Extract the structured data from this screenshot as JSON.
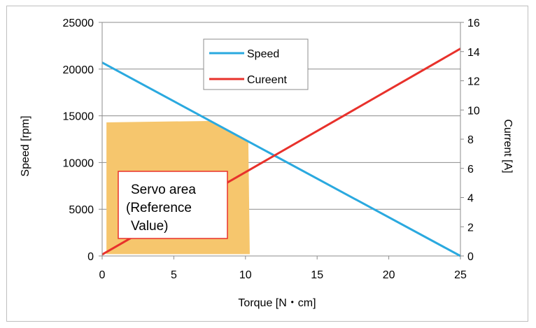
{
  "chart_data": {
    "type": "line",
    "xlabel": "Torque [N・cm]",
    "ylabel": "Speed [rpm]",
    "y2label": "Current [A]",
    "xlim": [
      0,
      25
    ],
    "ylim": [
      0,
      25000
    ],
    "y2lim": [
      0,
      16
    ],
    "x_ticks": [
      "0",
      "5",
      "10",
      "15",
      "20",
      "25"
    ],
    "y_ticks": [
      "0",
      "5000",
      "10000",
      "15000",
      "20000",
      "25000"
    ],
    "y2_ticks": [
      "0",
      "2",
      "4",
      "6",
      "8",
      "10",
      "12",
      "14",
      "16"
    ],
    "grid": true,
    "legend_position": "top-center",
    "series": [
      {
        "name": "Speed",
        "axis": "left",
        "color": "#2aa9df",
        "x": [
          0,
          25
        ],
        "y": [
          20700,
          0
        ]
      },
      {
        "name": "Cureent",
        "axis": "right",
        "color": "#e8312b",
        "x": [
          0,
          25
        ],
        "y": [
          0.1,
          14.2
        ]
      }
    ],
    "servo_area": {
      "color": "#f6c66d",
      "x": [
        0.3,
        7.5,
        10.2,
        10.3,
        0.3
      ],
      "y": [
        14300,
        14450,
        12200,
        200,
        200
      ]
    },
    "annotation": {
      "lines": [
        "Servo area",
        "(Reference",
        "Value)"
      ],
      "border_color": "#e8312b"
    }
  }
}
